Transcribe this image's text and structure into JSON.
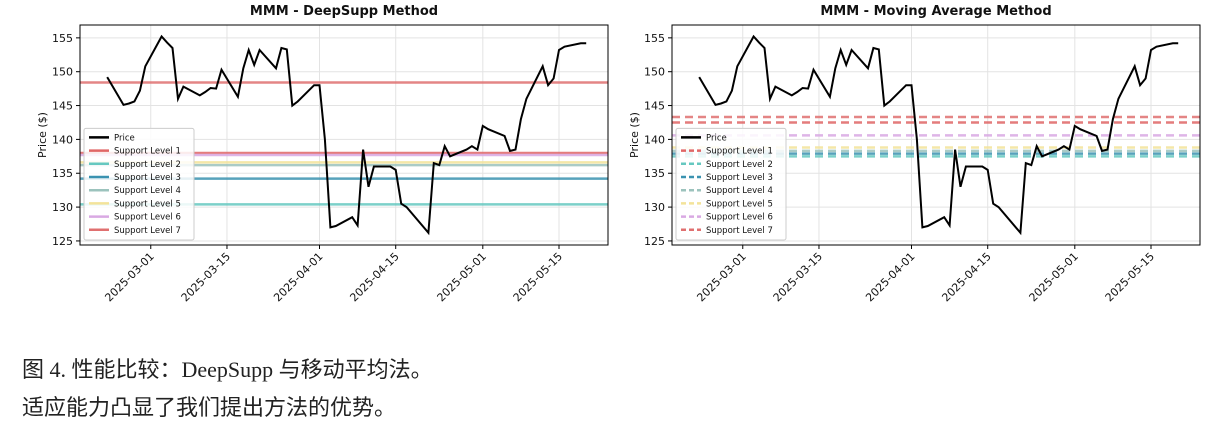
{
  "chart_data": [
    {
      "type": "line",
      "title": "MMM - DeepSupp Method",
      "ylabel": "Price ($)",
      "grid": true,
      "legend": "lower left",
      "level_style": "solid",
      "xlim": [
        "2025-02-16",
        "2025-05-24"
      ],
      "xticks": [
        "2025-03-01",
        "2025-03-15",
        "2025-04-01",
        "2025-04-15",
        "2025-05-01",
        "2025-05-15"
      ],
      "ylim": [
        124.4,
        156.9
      ],
      "yticks": [
        125,
        130,
        135,
        140,
        145,
        150,
        155
      ],
      "x": [
        "2025-02-21",
        "2025-02-24",
        "2025-02-25",
        "2025-02-26",
        "2025-02-27",
        "2025-02-28",
        "2025-03-03",
        "2025-03-04",
        "2025-03-05",
        "2025-03-06",
        "2025-03-07",
        "2025-03-10",
        "2025-03-11",
        "2025-03-12",
        "2025-03-13",
        "2025-03-14",
        "2025-03-17",
        "2025-03-18",
        "2025-03-19",
        "2025-03-20",
        "2025-03-21",
        "2025-03-24",
        "2025-03-25",
        "2025-03-26",
        "2025-03-27",
        "2025-03-28",
        "2025-03-31",
        "2025-04-01",
        "2025-04-02",
        "2025-04-03",
        "2025-04-04",
        "2025-04-07",
        "2025-04-08",
        "2025-04-09",
        "2025-04-10",
        "2025-04-11",
        "2025-04-14",
        "2025-04-15",
        "2025-04-16",
        "2025-04-17",
        "2025-04-21",
        "2025-04-22",
        "2025-04-23",
        "2025-04-24",
        "2025-04-25",
        "2025-04-28",
        "2025-04-29",
        "2025-04-30",
        "2025-05-01",
        "2025-05-02",
        "2025-05-05",
        "2025-05-06",
        "2025-05-07",
        "2025-05-08",
        "2025-05-09",
        "2025-05-12",
        "2025-05-13",
        "2025-05-14",
        "2025-05-15",
        "2025-05-16",
        "2025-05-19",
        "2025-05-20"
      ],
      "series": [
        {
          "name": "Price",
          "color": "#000000",
          "values": [
            149.2,
            145.1,
            145.3,
            145.6,
            147.2,
            150.8,
            155.2,
            154.3,
            153.5,
            146.0,
            147.8,
            146.5,
            147.0,
            147.6,
            147.5,
            150.3,
            146.3,
            150.5,
            153.2,
            151.0,
            153.2,
            150.5,
            153.5,
            153.3,
            145.0,
            145.6,
            148.0,
            148.0,
            140.0,
            127.0,
            127.2,
            128.5,
            127.3,
            138.5,
            133.0,
            136.0,
            136.0,
            135.5,
            130.5,
            130.0,
            126.2,
            136.5,
            136.2,
            139.0,
            137.5,
            138.5,
            139.0,
            138.5,
            142.0,
            141.5,
            140.5,
            138.3,
            138.5,
            143.0,
            146.0,
            150.8,
            148.0,
            149.0,
            153.2,
            153.7,
            154.2,
            154.2
          ]
        }
      ],
      "levels": [
        {
          "name": "Support Level 1",
          "color": "#e06666",
          "value": 138.0
        },
        {
          "name": "Support Level 2",
          "color": "#66c8c0",
          "value": 130.4
        },
        {
          "name": "Support Level 3",
          "color": "#3a92b0",
          "value": 134.2
        },
        {
          "name": "Support Level 4",
          "color": "#9cc3bd",
          "value": 136.2
        },
        {
          "name": "Support Level 5",
          "color": "#f3e39a",
          "value": 136.6
        },
        {
          "name": "Support Level 6",
          "color": "#d9a9e3",
          "value": 137.7
        },
        {
          "name": "Support Level 7",
          "color": "#e07070",
          "value": 148.4
        }
      ]
    },
    {
      "type": "line",
      "title": "MMM - Moving Average Method",
      "ylabel": "Price ($)",
      "grid": true,
      "legend": "lower left",
      "level_style": "dashed",
      "xlim": [
        "2025-02-16",
        "2025-05-24"
      ],
      "xticks": [
        "2025-03-01",
        "2025-03-15",
        "2025-04-01",
        "2025-04-15",
        "2025-05-01",
        "2025-05-15"
      ],
      "ylim": [
        124.4,
        156.9
      ],
      "yticks": [
        125,
        130,
        135,
        140,
        145,
        150,
        155
      ],
      "x": [
        "2025-02-21",
        "2025-02-24",
        "2025-02-25",
        "2025-02-26",
        "2025-02-27",
        "2025-02-28",
        "2025-03-03",
        "2025-03-04",
        "2025-03-05",
        "2025-03-06",
        "2025-03-07",
        "2025-03-10",
        "2025-03-11",
        "2025-03-12",
        "2025-03-13",
        "2025-03-14",
        "2025-03-17",
        "2025-03-18",
        "2025-03-19",
        "2025-03-20",
        "2025-03-21",
        "2025-03-24",
        "2025-03-25",
        "2025-03-26",
        "2025-03-27",
        "2025-03-28",
        "2025-03-31",
        "2025-04-01",
        "2025-04-02",
        "2025-04-03",
        "2025-04-04",
        "2025-04-07",
        "2025-04-08",
        "2025-04-09",
        "2025-04-10",
        "2025-04-11",
        "2025-04-14",
        "2025-04-15",
        "2025-04-16",
        "2025-04-17",
        "2025-04-21",
        "2025-04-22",
        "2025-04-23",
        "2025-04-24",
        "2025-04-25",
        "2025-04-28",
        "2025-04-29",
        "2025-04-30",
        "2025-05-01",
        "2025-05-02",
        "2025-05-05",
        "2025-05-06",
        "2025-05-07",
        "2025-05-08",
        "2025-05-09",
        "2025-05-12",
        "2025-05-13",
        "2025-05-14",
        "2025-05-15",
        "2025-05-16",
        "2025-05-19",
        "2025-05-20"
      ],
      "series": [
        {
          "name": "Price",
          "color": "#000000",
          "values": [
            149.2,
            145.1,
            145.3,
            145.6,
            147.2,
            150.8,
            155.2,
            154.3,
            153.5,
            146.0,
            147.8,
            146.5,
            147.0,
            147.6,
            147.5,
            150.3,
            146.3,
            150.5,
            153.2,
            151.0,
            153.2,
            150.5,
            153.5,
            153.3,
            145.0,
            145.6,
            148.0,
            148.0,
            140.0,
            127.0,
            127.2,
            128.5,
            127.3,
            138.5,
            133.0,
            136.0,
            136.0,
            135.5,
            130.5,
            130.0,
            126.2,
            136.5,
            136.2,
            139.0,
            137.5,
            138.5,
            139.0,
            138.5,
            142.0,
            141.5,
            140.5,
            138.3,
            138.5,
            143.0,
            146.0,
            150.8,
            148.0,
            149.0,
            153.2,
            153.7,
            154.2,
            154.2
          ]
        }
      ],
      "levels": [
        {
          "name": "Support Level 1",
          "color": "#e06666",
          "value": 142.5
        },
        {
          "name": "Support Level 2",
          "color": "#66c8c0",
          "value": 137.5
        },
        {
          "name": "Support Level 3",
          "color": "#3a92b0",
          "value": 137.9
        },
        {
          "name": "Support Level 4",
          "color": "#9cc3bd",
          "value": 138.3
        },
        {
          "name": "Support Level 5",
          "color": "#f3e39a",
          "value": 138.8
        },
        {
          "name": "Support Level 6",
          "color": "#d9a9e3",
          "value": 140.6
        },
        {
          "name": "Support Level 7",
          "color": "#e07070",
          "value": 143.3
        }
      ]
    }
  ],
  "caption": [
    "图 4. 性能比较：DeepSupp 与移动平均法。",
    "适应能力凸显了我们提出方法的优势。"
  ]
}
